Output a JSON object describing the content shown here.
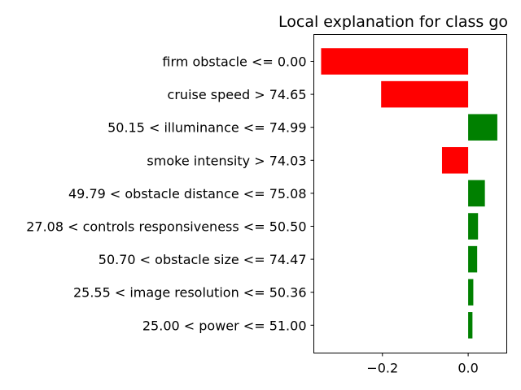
{
  "chart_data": {
    "type": "bar",
    "orientation": "horizontal",
    "title": "Local explanation for class go",
    "categories": [
      "firm obstacle <= 0.00",
      "cruise speed > 74.65",
      "50.15 < illuminance <= 74.99",
      "smoke intensity > 74.03",
      "49.79 < obstacle distance <= 75.08",
      "27.08 < controls responsiveness <= 50.50",
      "50.70 < obstacle size <= 74.47",
      "25.55 < image resolution <= 50.36",
      "25.00 < power <= 51.00"
    ],
    "values": [
      -0.343,
      -0.203,
      0.068,
      -0.061,
      0.039,
      0.023,
      0.021,
      0.012,
      0.01
    ],
    "xlim": [
      -0.36,
      0.09
    ],
    "xticks": [
      -0.2,
      0.0
    ],
    "xtick_labels": [
      "−0.2",
      "0.0"
    ],
    "xlabel": "",
    "ylabel": "",
    "grid": false,
    "colors": {
      "positive": "#008000",
      "negative": "#ff0000",
      "axis": "#000000"
    }
  }
}
